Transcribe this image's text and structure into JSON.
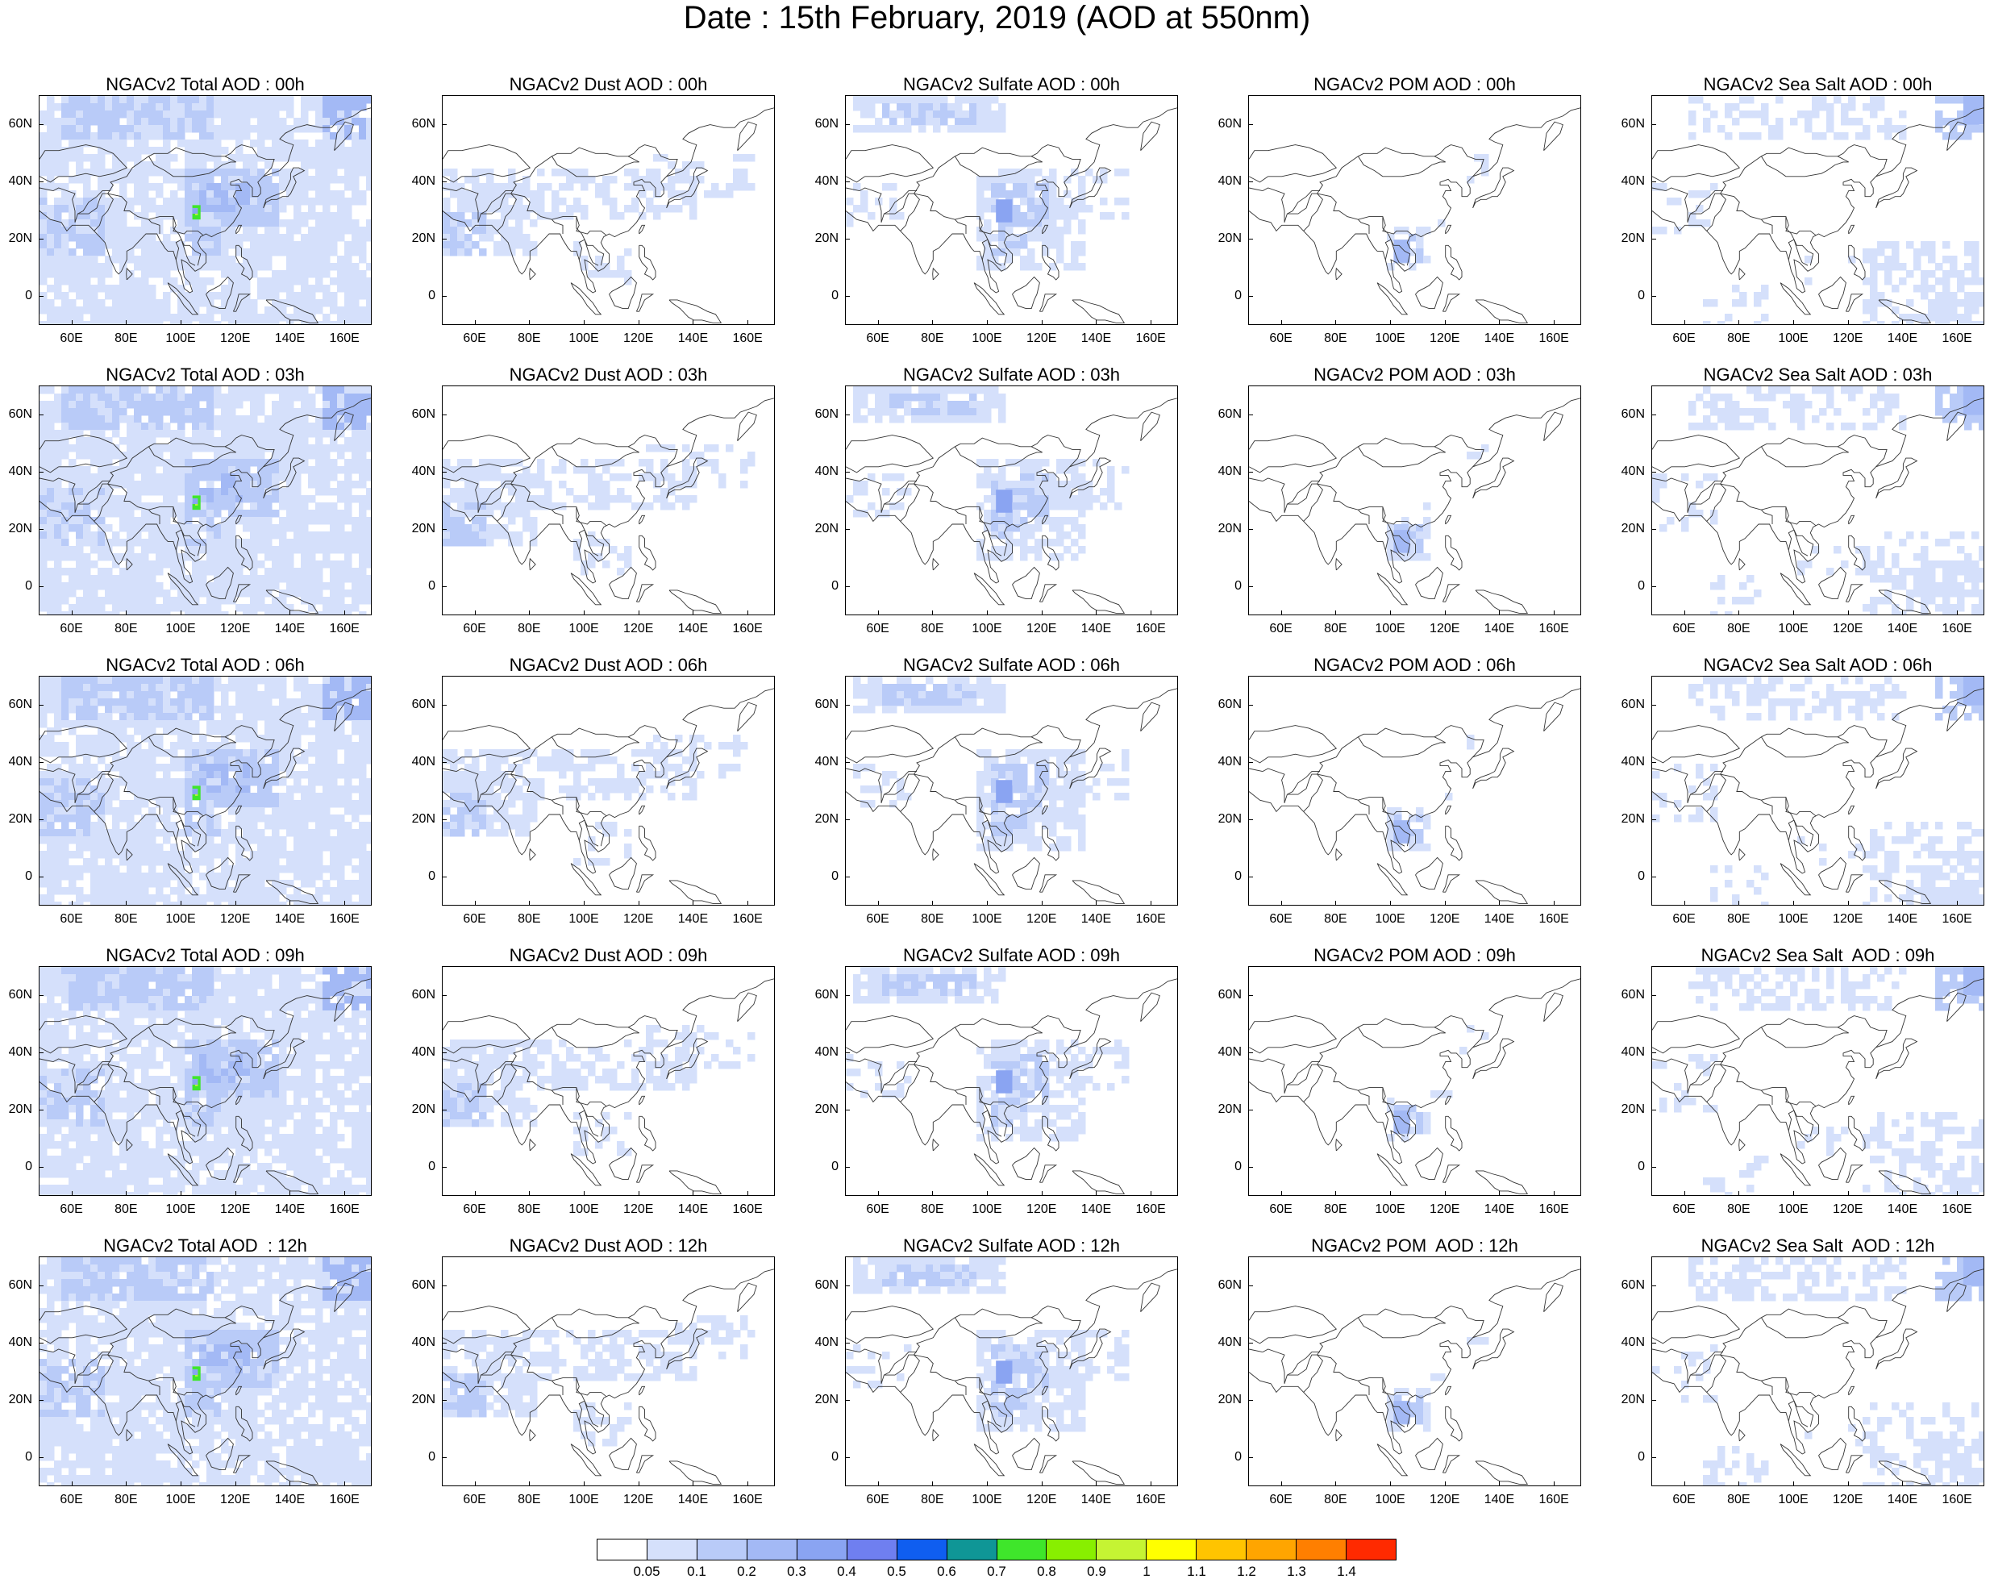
{
  "main_title": "Date : 15th February, 2019 (AOD at 550nm)",
  "lat_ticks": [
    "60N",
    "40N",
    "20N",
    "0"
  ],
  "lon_ticks": [
    "60E",
    "80E",
    "100E",
    "120E",
    "140E",
    "160E"
  ],
  "columns": [
    {
      "key": "total",
      "name": "Total"
    },
    {
      "key": "dust",
      "name": "Dust"
    },
    {
      "key": "sulfate",
      "name": "Sulfate"
    },
    {
      "key": "pom",
      "name": "POM"
    },
    {
      "key": "seasalt",
      "name": "Sea Salt"
    }
  ],
  "panels": [
    [
      "NGACv2 Total AOD : 00h",
      "NGACv2 Dust AOD : 00h",
      "NGACv2 Sulfate AOD : 00h",
      "NGACv2 POM AOD : 00h",
      "NGACv2 Sea Salt AOD : 00h"
    ],
    [
      "NGACv2 Total AOD : 03h",
      "NGACv2 Dust AOD : 03h",
      "NGACv2 Sulfate AOD : 03h",
      "NGACv2 POM AOD : 03h",
      "NGACv2 Sea Salt AOD : 03h"
    ],
    [
      "NGACv2 Total AOD : 06h",
      "NGACv2 Dust AOD : 06h",
      "NGACv2 Sulfate AOD : 06h",
      "NGACv2 POM AOD : 06h",
      "NGACv2 Sea Salt AOD : 06h"
    ],
    [
      "NGACv2 Total AOD : 09h",
      "NGACv2 Dust AOD : 09h",
      "NGACv2 Sulfate AOD : 09h",
      "NGACv2 POM AOD : 09h",
      "NGACv2 Sea Salt  AOD : 09h"
    ],
    [
      "NGACv2 Total AOD  : 12h",
      "NGACv2 Dust AOD : 12h",
      "NGACv2 Sulfate AOD : 12h",
      "NGACv2 POM  AOD : 12h",
      "NGACv2 Sea Salt  AOD : 12h"
    ]
  ],
  "colorbar": {
    "labels": [
      "0.05",
      "0.1",
      "0.2",
      "0.3",
      "0.4",
      "0.5",
      "0.6",
      "0.7",
      "0.8",
      "0.9",
      "1",
      "1.1",
      "1.2",
      "1.3",
      "1.4"
    ],
    "colors": [
      "#ffffff",
      "#d5e0fb",
      "#b9cbf8",
      "#a3b9f5",
      "#8aa4f2",
      "#6f7ff0",
      "#0f5ef0",
      "#0f9696",
      "#3fe62b",
      "#88ef00",
      "#c5f433",
      "#ffff00",
      "#ffc400",
      "#ffa500",
      "#ff7f00",
      "#ff2a00"
    ]
  }
}
